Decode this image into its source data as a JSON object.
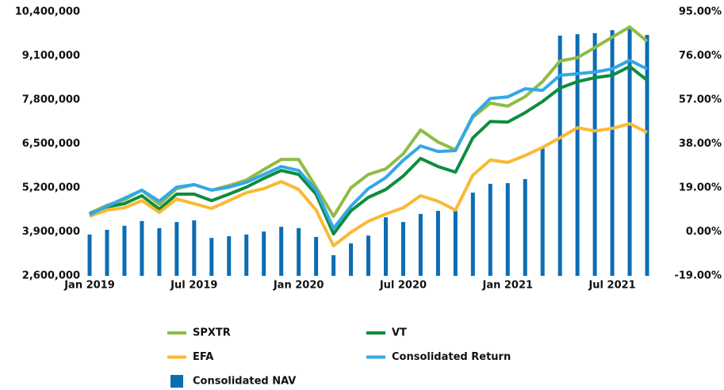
{
  "chart_data": {
    "type": "bar-line",
    "categories": [
      "Jan 2019",
      null,
      null,
      null,
      null,
      null,
      "Jul 2019",
      null,
      null,
      null,
      null,
      null,
      "Jan 2020",
      null,
      null,
      null,
      null,
      null,
      "Jul 2020",
      null,
      null,
      null,
      null,
      null,
      "Jan 2021",
      null,
      null,
      null,
      null,
      null,
      "Jul 2021",
      null,
      null
    ],
    "series": [
      {
        "name": "Consolidated NAV",
        "type": "bar",
        "axis": "y",
        "color": "#0b6db5",
        "values": [
          3820000,
          3960000,
          4080000,
          4220000,
          4010000,
          4190000,
          4240000,
          3720000,
          3770000,
          3820000,
          3910000,
          4050000,
          4010000,
          3750000,
          3210000,
          3560000,
          3790000,
          4330000,
          4190000,
          4430000,
          4520000,
          4520000,
          5060000,
          5320000,
          5340000,
          5460000,
          6370000,
          9700000,
          9740000,
          9770000,
          9860000,
          9930000,
          9720000
        ]
      },
      {
        "name": "SPXTR",
        "type": "line",
        "axis": "y2",
        "color": "#8fbc45",
        "values": [
          8.0,
          11.5,
          13.9,
          18.0,
          11.8,
          18.7,
          20.4,
          18.0,
          20.0,
          22.4,
          26.9,
          31.3,
          31.3,
          19.3,
          6.7,
          19.0,
          24.8,
          27.2,
          33.7,
          44.0,
          38.8,
          35.4,
          49.5,
          55.6,
          54.3,
          58.4,
          64.9,
          73.8,
          75.2,
          79.6,
          84.1,
          88.5,
          82.3
        ]
      },
      {
        "name": "VT",
        "type": "line",
        "axis": "y2",
        "color": "#0e8c3e",
        "values": [
          7.7,
          10.8,
          12.2,
          15.6,
          9.8,
          16.3,
          16.3,
          13.5,
          16.3,
          19.3,
          23.1,
          26.5,
          24.8,
          16.3,
          -0.9,
          9.1,
          14.9,
          18.3,
          24.1,
          31.7,
          28.2,
          25.8,
          40.6,
          47.7,
          47.4,
          51.5,
          56.3,
          62.1,
          64.9,
          66.6,
          67.6,
          71.4,
          65.5
        ]
      },
      {
        "name": "EFA",
        "type": "line",
        "axis": "y2",
        "color": "#f9b935",
        "values": [
          6.7,
          9.4,
          10.4,
          13.5,
          8.4,
          14.2,
          12.2,
          10.1,
          13.5,
          16.9,
          18.7,
          21.7,
          18.3,
          9.4,
          -6.0,
          -0.2,
          4.6,
          7.7,
          10.4,
          15.6,
          13.2,
          9.4,
          24.5,
          31.0,
          30.0,
          33.0,
          36.5,
          40.6,
          45.0,
          43.6,
          44.7,
          46.7,
          43.0
        ]
      },
      {
        "name": "Consolidated Return",
        "type": "line",
        "axis": "y2",
        "color": "#33a8e6",
        "values": [
          7.4,
          11.1,
          14.5,
          18.0,
          13.2,
          19.3,
          20.4,
          18.0,
          19.3,
          21.4,
          24.8,
          28.2,
          26.5,
          18.0,
          1.5,
          11.1,
          18.7,
          23.4,
          30.9,
          37.1,
          34.7,
          35.1,
          50.1,
          57.6,
          58.3,
          61.8,
          61.1,
          67.6,
          68.3,
          69.0,
          70.4,
          74.1,
          70.4
        ]
      }
    ],
    "ylim": [
      2600000,
      10400000
    ],
    "yticks": [
      {
        "value": 10400000,
        "label": "10,400,000"
      },
      {
        "value": 9100000,
        "label": "9,100,000"
      },
      {
        "value": 7800000,
        "label": "7,800,000"
      },
      {
        "value": 6500000,
        "label": "6,500,000"
      },
      {
        "value": 5200000,
        "label": "5,200,000"
      },
      {
        "value": 3900000,
        "label": "3,900,000"
      },
      {
        "value": 2600000,
        "label": "2,600,000"
      }
    ],
    "y2lim": [
      -19,
      95
    ],
    "y2ticks": [
      {
        "value": 95,
        "label": "95.00%"
      },
      {
        "value": 76,
        "label": "76.00%"
      },
      {
        "value": 57,
        "label": "57.00%"
      },
      {
        "value": 38,
        "label": "38.00%"
      },
      {
        "value": 19,
        "label": "19.00%"
      },
      {
        "value": 0,
        "label": "0.00%"
      },
      {
        "value": -19,
        "label": "-19.00%"
      }
    ],
    "grid": false
  }
}
